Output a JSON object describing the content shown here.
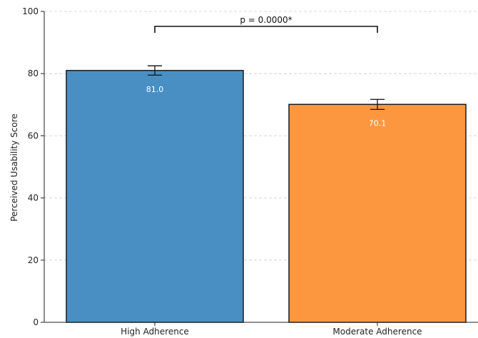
{
  "chart_data": {
    "type": "bar",
    "categories": [
      "High Adherence",
      "Moderate Adherence"
    ],
    "values": [
      81.0,
      70.1
    ],
    "error": [
      1.5,
      1.6
    ],
    "value_labels": [
      "81.0",
      "70.1"
    ],
    "colors": [
      "#4a8fc4",
      "#fd973f"
    ],
    "ylabel": "Perceived Usability Score",
    "xlabel": "",
    "ylim": [
      0,
      100
    ],
    "yticks": [
      0,
      20,
      40,
      60,
      80,
      100
    ],
    "grid": "horizontal dashed",
    "significance": {
      "label": "p = 0.0000*",
      "from": 0,
      "to": 1
    }
  }
}
